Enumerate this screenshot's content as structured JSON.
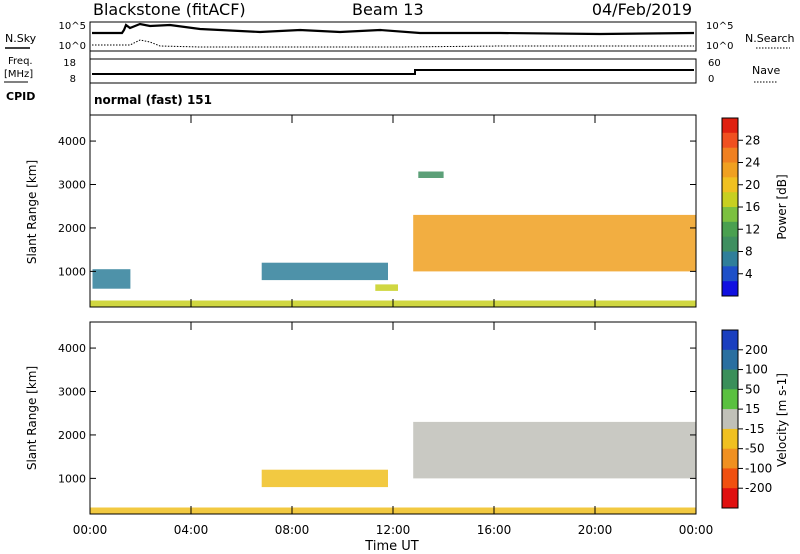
{
  "header": {
    "station": "Blackstone (fitACF)",
    "beam": "Beam 13",
    "date": "04/Feb/2019"
  },
  "params": {
    "nsky_label": "N.Sky",
    "nsearch_label": "N.Search",
    "noise_ticks_left": [
      "10^5",
      "10^0"
    ],
    "noise_ticks_right": [
      "10^5",
      "10^0"
    ],
    "freq_label_1": "Freq.",
    "freq_label_2": "[MHz]",
    "freq_ticks": [
      "18",
      "8"
    ],
    "nave_label": "Nave",
    "nave_ticks": [
      "60",
      "0"
    ],
    "cpid_label": "CPID",
    "cpid_text": "normal (fast) 151"
  },
  "chart_data": [
    {
      "type": "heatmap",
      "title": "",
      "xlabel": "Time UT",
      "ylabel": "Slant Range [km]",
      "x_ticks": [
        "00:00",
        "04:00",
        "08:00",
        "12:00",
        "16:00",
        "20:00",
        "00:00"
      ],
      "xlim_hours": [
        0,
        24
      ],
      "y_ticks": [
        1000,
        2000,
        3000,
        4000
      ],
      "ylim": [
        180,
        4600
      ],
      "colorbar": {
        "label": "Power [dB]",
        "ticks": [
          4,
          8,
          12,
          16,
          20,
          24,
          28
        ],
        "range": [
          0,
          32
        ],
        "colors": [
          "#1010e0",
          "#1e50c8",
          "#2f7f9a",
          "#3f8f60",
          "#4aa050",
          "#7cc040",
          "#c8d020",
          "#f0c020",
          "#f0a020",
          "#f08020",
          "#f05020",
          "#e02010"
        ]
      },
      "regions": [
        {
          "label": "near-range ground band",
          "t": [
            0,
            24
          ],
          "range_km": [
            180,
            330
          ],
          "value": 18
        },
        {
          "label": "early backscatter",
          "t": [
            0.1,
            1.6
          ],
          "range_km": [
            600,
            1050
          ],
          "value": 6
        },
        {
          "label": "midday scatter",
          "t": [
            6.8,
            11.8
          ],
          "range_km": [
            800,
            1200
          ],
          "value": 6
        },
        {
          "label": "mid-range echo",
          "t": [
            11.3,
            12.2
          ],
          "range_km": [
            550,
            700
          ],
          "value": 16
        },
        {
          "label": "main ionospheric band",
          "t": [
            12.8,
            24
          ],
          "range_km": [
            1000,
            2300
          ],
          "value": 22
        },
        {
          "label": "high-range patch",
          "t": [
            13.0,
            14.0
          ],
          "range_km": [
            3150,
            3300
          ],
          "value": 10
        }
      ]
    },
    {
      "type": "heatmap",
      "title": "",
      "xlabel": "Time UT",
      "ylabel": "Slant Range [km]",
      "x_ticks": [
        "00:00",
        "04:00",
        "08:00",
        "12:00",
        "16:00",
        "20:00",
        "00:00"
      ],
      "xlim_hours": [
        0,
        24
      ],
      "y_ticks": [
        1000,
        2000,
        3000,
        4000
      ],
      "ylim": [
        180,
        4600
      ],
      "colorbar": {
        "label": "Velocity [m s-1]",
        "ticks": [
          "200",
          "100",
          "50",
          "15",
          "-15",
          "-50",
          "-100",
          "-200"
        ],
        "range": [
          -250,
          250
        ],
        "ground_scatter_color": "#c0c0b8",
        "colors": [
          "#1a3fbf",
          "#2a6fa0",
          "#3a8f5a",
          "#5ac040",
          "#c0c0b8",
          "#f0c020",
          "#f09020",
          "#f05010",
          "#e01010"
        ]
      },
      "regions": [
        {
          "label": "near-range ground band",
          "t": [
            0,
            24
          ],
          "range_km": [
            180,
            330
          ],
          "value": -30
        },
        {
          "label": "midday scatter",
          "t": [
            6.8,
            11.8
          ],
          "range_km": [
            800,
            1200
          ],
          "value": -40
        },
        {
          "label": "main band ground scatter",
          "t": [
            12.8,
            24
          ],
          "range_km": [
            1000,
            2300
          ],
          "value": 0
        }
      ]
    }
  ],
  "colorbar_ticks_power": [
    "28",
    "24",
    "20",
    "16",
    "12",
    "8",
    "4"
  ],
  "colorbar_ticks_velocity": [
    "200",
    "100",
    "50",
    "15",
    "-15",
    "-50",
    "-100",
    "-200"
  ]
}
